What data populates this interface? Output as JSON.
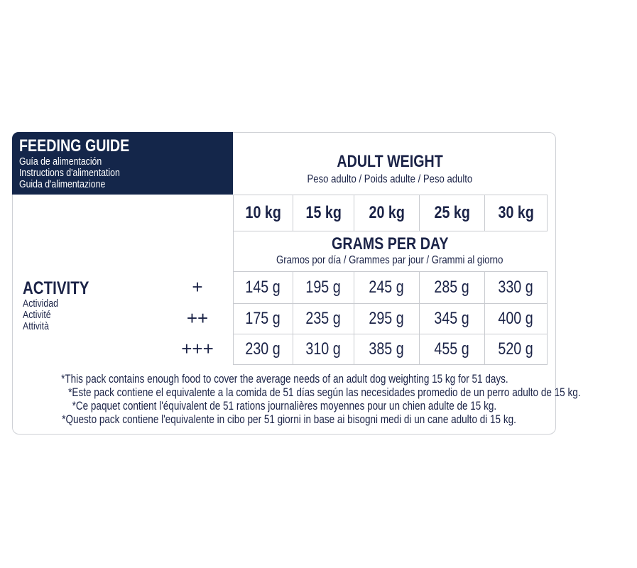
{
  "header": {
    "title": "FEEDING GUIDE",
    "subtitles": [
      "Guía de alimentación",
      "Instructions d'alimentation",
      "Guida d'alimentazione"
    ]
  },
  "adult_weight": {
    "title": "ADULT WEIGHT",
    "subtitle": "Peso adulto / Poids adulte / Peso adulto"
  },
  "weights": [
    "10 kg",
    "15 kg",
    "20 kg",
    "25 kg",
    "30 kg"
  ],
  "grams_per_day": {
    "title": "GRAMS PER DAY",
    "subtitle": "Gramos por día / Grammes par jour / Grammi al giorno"
  },
  "activity": {
    "title": "ACTIVITY",
    "subtitles": [
      "Actividad",
      "Activité",
      "Attività"
    ]
  },
  "rows": [
    {
      "level": "+",
      "values": [
        "145 g",
        "195 g",
        "245 g",
        "285 g",
        "330 g"
      ]
    },
    {
      "level": "++",
      "values": [
        "175 g",
        "235 g",
        "295 g",
        "345 g",
        "400 g"
      ]
    },
    {
      "level": "+++",
      "values": [
        "230 g",
        "310 g",
        "385 g",
        "455 g",
        "520 g"
      ]
    }
  ],
  "footnotes": [
    "*This pack contains enough food to cover the average needs of an adult dog weighting 15 kg for 51 days.",
    "*Este pack contiene el equivalente a la comida de 51 días según las necesidades promedio de un perro adulto de 15 kg.",
    "*Ce paquet contient l'équivalent de 51 rations journalières moyennes pour un chien adulte de 15 kg.",
    "*Questo pack contiene l'equivalente in cibo per 51 giorni in base ai bisogni medi di un cane adulto di 15 kg."
  ],
  "colors": {
    "header_bg": "#14264a",
    "text": "#1b2347",
    "grid": "#c9cbd0"
  }
}
